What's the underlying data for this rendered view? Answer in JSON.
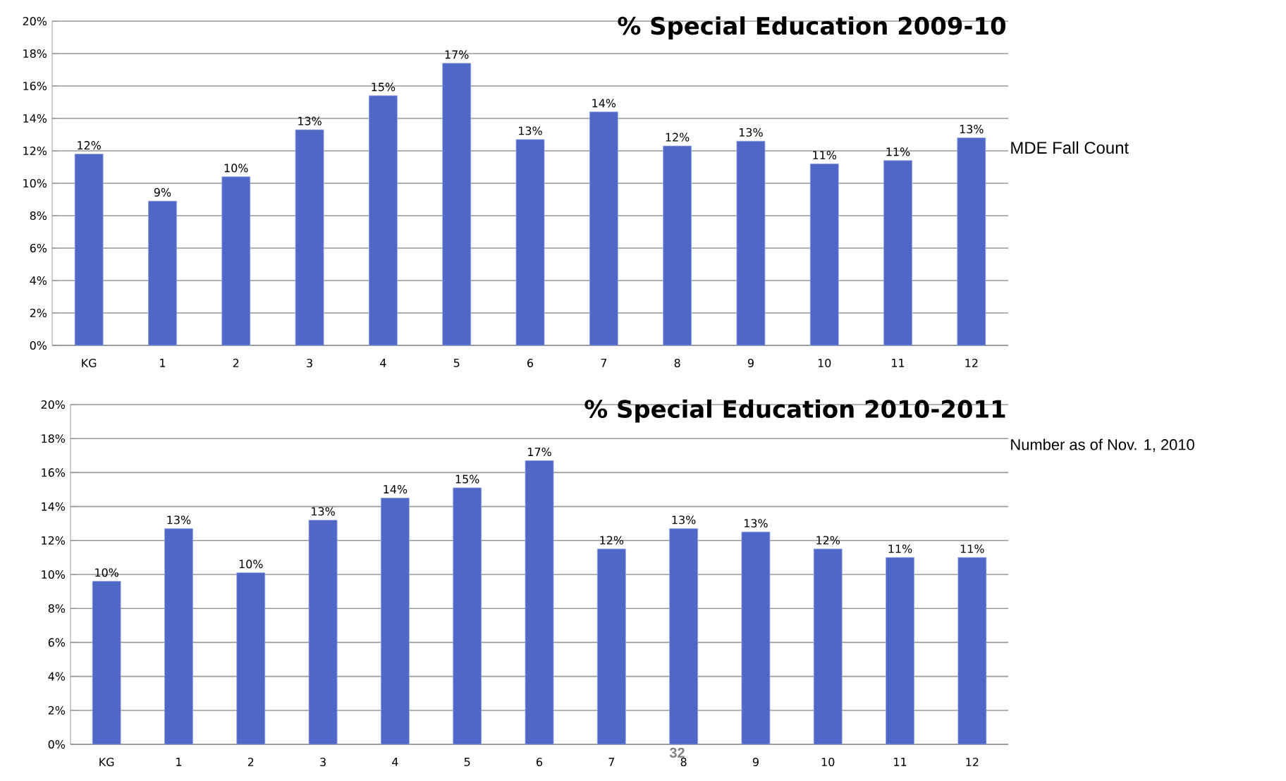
{
  "chart_data": [
    {
      "type": "bar",
      "title": "% Special Education 2009-10",
      "color": "#4f67c7",
      "categories": [
        "KG",
        "1",
        "2",
        "3",
        "4",
        "5",
        "6",
        "7",
        "8",
        "9",
        "10",
        "11",
        "12"
      ],
      "values": [
        11.8,
        8.9,
        10.4,
        13.3,
        15.4,
        17.4,
        12.7,
        14.4,
        12.3,
        12.6,
        11.2,
        11.4,
        12.8
      ],
      "value_labels": [
        "12%",
        "9%",
        "10%",
        "13%",
        "15%",
        "17%",
        "13%",
        "14%",
        "12%",
        "13%",
        "11%",
        "11%",
        "13%"
      ],
      "ylim": [
        0,
        20
      ],
      "yticks": [
        {
          "value": 0,
          "label": "0%"
        },
        {
          "value": 2,
          "label": "2%"
        },
        {
          "value": 4,
          "label": "4%"
        },
        {
          "value": 6,
          "label": "6%"
        },
        {
          "value": 8,
          "label": "8%"
        },
        {
          "value": 10,
          "label": "10%"
        },
        {
          "value": 12,
          "label": "12%"
        },
        {
          "value": 14,
          "label": "14%"
        },
        {
          "value": 16,
          "label": "16%"
        },
        {
          "value": 18,
          "label": "18%"
        },
        {
          "value": 20,
          "label": "20%"
        }
      ],
      "grid": "y",
      "annotations": [
        "MDE Fall Count"
      ]
    },
    {
      "type": "bar",
      "title": "% Special Education 2010-2011",
      "color": "#4f67c7",
      "categories": [
        "KG",
        "1",
        "2",
        "3",
        "4",
        "5",
        "6",
        "7",
        "8",
        "9",
        "10",
        "11",
        "12"
      ],
      "values": [
        9.6,
        12.7,
        10.1,
        13.2,
        14.5,
        15.1,
        16.7,
        11.5,
        12.7,
        12.5,
        11.5,
        11.0,
        11.0
      ],
      "value_labels": [
        "10%",
        "13%",
        "10%",
        "13%",
        "14%",
        "15%",
        "17%",
        "12%",
        "13%",
        "13%",
        "12%",
        "11%",
        "11%"
      ],
      "ylim": [
        0,
        20
      ],
      "yticks": [
        {
          "value": 0,
          "label": "0%"
        },
        {
          "value": 2,
          "label": "2%"
        },
        {
          "value": 4,
          "label": "4%"
        },
        {
          "value": 6,
          "label": "6%"
        },
        {
          "value": 8,
          "label": "8%"
        },
        {
          "value": 10,
          "label": "10%"
        },
        {
          "value": 12,
          "label": "12%"
        },
        {
          "value": 14,
          "label": "14%"
        },
        {
          "value": 16,
          "label": "16%"
        },
        {
          "value": 18,
          "label": "18%"
        },
        {
          "value": 20,
          "label": "20%"
        }
      ],
      "grid": "y",
      "annotations": [
        "Number as of Nov. 1, 2010",
        "32"
      ]
    }
  ]
}
